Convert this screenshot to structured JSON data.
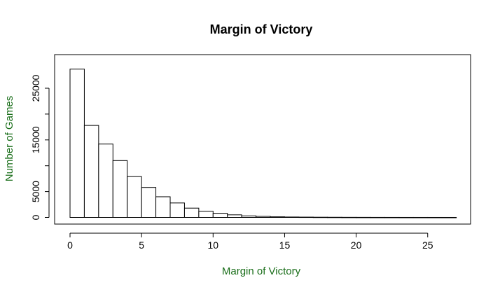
{
  "chart_data": {
    "type": "bar",
    "title": "Margin of Victory",
    "xlabel": "Margin of Victory",
    "ylabel": "Number of Games",
    "label_color": "#1a6e1a",
    "bin_width": 1,
    "bin_starts": [
      0,
      1,
      2,
      3,
      4,
      5,
      6,
      7,
      8,
      9,
      10,
      11,
      12,
      13,
      14,
      15,
      16,
      17,
      18,
      19,
      20,
      21,
      22,
      23,
      24,
      25,
      26
    ],
    "values": [
      28700,
      17800,
      14200,
      11000,
      7900,
      5800,
      4000,
      2800,
      1800,
      1200,
      800,
      500,
      300,
      200,
      120,
      80,
      60,
      40,
      30,
      20,
      15,
      10,
      8,
      5,
      4,
      3,
      2
    ],
    "xlim": [
      0,
      27
    ],
    "ylim": [
      0,
      30000
    ],
    "x_ticks": [
      0,
      5,
      10,
      15,
      20,
      25
    ],
    "y_ticks": [
      0,
      5000,
      15000,
      25000
    ],
    "grid": false,
    "legend": "none"
  }
}
